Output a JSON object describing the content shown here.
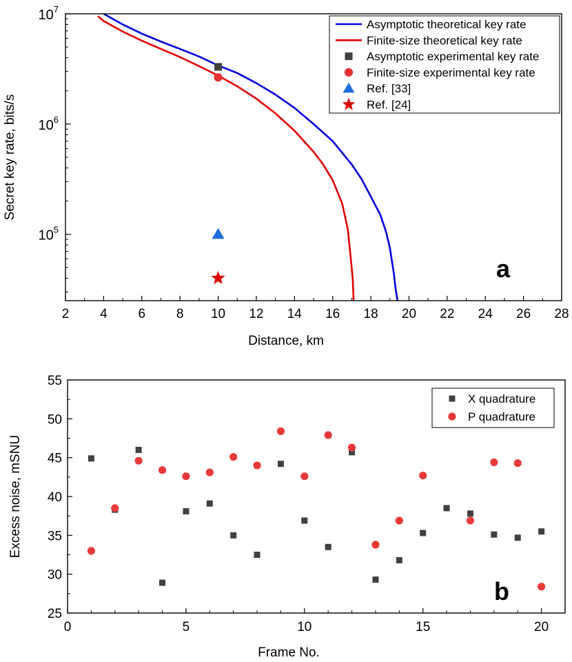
{
  "chart_data": [
    {
      "type": "line",
      "panel_label": "a",
      "xlabel": "Distance, km",
      "ylabel": "Secret key rate, bits/s",
      "xlim": [
        2,
        28
      ],
      "ylim": [
        25000,
        10000000
      ],
      "yscale": "log",
      "xticks": [
        "2",
        "4",
        "6",
        "8",
        "10",
        "12",
        "14",
        "16",
        "18",
        "20",
        "22",
        "24",
        "26",
        "28"
      ],
      "yticks": [
        {
          "base": "10",
          "exp": "5",
          "value": 100000
        },
        {
          "base": "10",
          "exp": "6",
          "value": 1000000
        },
        {
          "base": "10",
          "exp": "7",
          "value": 10000000
        }
      ],
      "legend_position": "top-right",
      "series": [
        {
          "name": "Asymptotic theoretical key rate",
          "kind": "line",
          "color": "#0000dd",
          "points": [
            [
              4.0,
              10000000
            ],
            [
              5,
              8000000
            ],
            [
              6,
              6600000
            ],
            [
              7,
              5600000
            ],
            [
              8,
              4800000
            ],
            [
              9,
              4100000
            ],
            [
              10,
              3400000
            ],
            [
              11,
              2900000
            ],
            [
              12,
              2350000
            ],
            [
              13,
              1850000
            ],
            [
              14,
              1400000
            ],
            [
              15,
              1000000
            ],
            [
              16,
              700000
            ],
            [
              17,
              430000
            ],
            [
              17.5,
              320000
            ],
            [
              18,
              220000
            ],
            [
              18.5,
              150000
            ],
            [
              18.8,
              105000
            ],
            [
              19.0,
              75000
            ],
            [
              19.2,
              45000
            ],
            [
              19.3,
              32000
            ],
            [
              19.4,
              25000
            ]
          ]
        },
        {
          "name": "Finite-size theoretical key rate",
          "kind": "line",
          "color": "#e00000",
          "points": [
            [
              3.7,
              9500000
            ],
            [
              4,
              8600000
            ],
            [
              5,
              6900000
            ],
            [
              6,
              5700000
            ],
            [
              7,
              4800000
            ],
            [
              8,
              4050000
            ],
            [
              9,
              3350000
            ],
            [
              10,
              2750000
            ],
            [
              11,
              2200000
            ],
            [
              12,
              1700000
            ],
            [
              13,
              1250000
            ],
            [
              14,
              870000
            ],
            [
              15,
              560000
            ],
            [
              15.5,
              430000
            ],
            [
              16,
              310000
            ],
            [
              16.5,
              190000
            ],
            [
              16.8,
              110000
            ],
            [
              16.95,
              60000
            ],
            [
              17.05,
              40000
            ],
            [
              17.1,
              25000
            ]
          ]
        },
        {
          "name": "Asymptotic experimental key rate",
          "kind": "marker",
          "marker": "square",
          "color": "#404040",
          "points": [
            [
              10,
              3300000
            ]
          ]
        },
        {
          "name": "Finite-size experimental key rate",
          "kind": "marker",
          "marker": "circle",
          "color": "#e83030",
          "points": [
            [
              10,
              2650000
            ]
          ]
        },
        {
          "name": "Ref. [33]",
          "kind": "marker",
          "marker": "triangle",
          "color": "#1e6fdc",
          "points": [
            [
              10,
              100000
            ]
          ]
        },
        {
          "name": "Ref. [24]",
          "kind": "marker",
          "marker": "star",
          "color": "#e00000",
          "points": [
            [
              10,
              40000
            ]
          ]
        }
      ]
    },
    {
      "type": "scatter",
      "panel_label": "b",
      "xlabel": "Frame No.",
      "ylabel": "Excess noise, mSNU",
      "xlim": [
        0,
        21
      ],
      "ylim": [
        25,
        55
      ],
      "xticks": [
        "0",
        "5",
        "10",
        "15",
        "20"
      ],
      "yticks": [
        "25",
        "30",
        "35",
        "40",
        "45",
        "50",
        "55"
      ],
      "legend_position": "top-right",
      "series": [
        {
          "name": "X quadrature",
          "marker": "square",
          "color": "#404040",
          "x": [
            1,
            2,
            3,
            4,
            5,
            6,
            7,
            8,
            9,
            10,
            11,
            12,
            13,
            14,
            15,
            16,
            17,
            18,
            19,
            20
          ],
          "y": [
            44.9,
            38.3,
            46.0,
            28.9,
            38.1,
            39.1,
            35.0,
            32.5,
            44.2,
            36.9,
            33.5,
            45.7,
            29.3,
            31.8,
            35.3,
            38.5,
            37.8,
            35.1,
            34.7,
            35.5
          ]
        },
        {
          "name": "P quadrature",
          "marker": "circle",
          "color": "#e83a3a",
          "x": [
            1,
            2,
            3,
            4,
            5,
            6,
            7,
            8,
            9,
            10,
            11,
            12,
            13,
            14,
            15,
            17,
            18,
            19,
            20
          ],
          "y": [
            33.0,
            38.5,
            44.6,
            43.4,
            42.6,
            43.1,
            45.1,
            44.0,
            48.4,
            42.6,
            47.9,
            46.3,
            33.8,
            36.9,
            42.7,
            36.9,
            44.4,
            44.3,
            28.4
          ]
        }
      ]
    }
  ]
}
